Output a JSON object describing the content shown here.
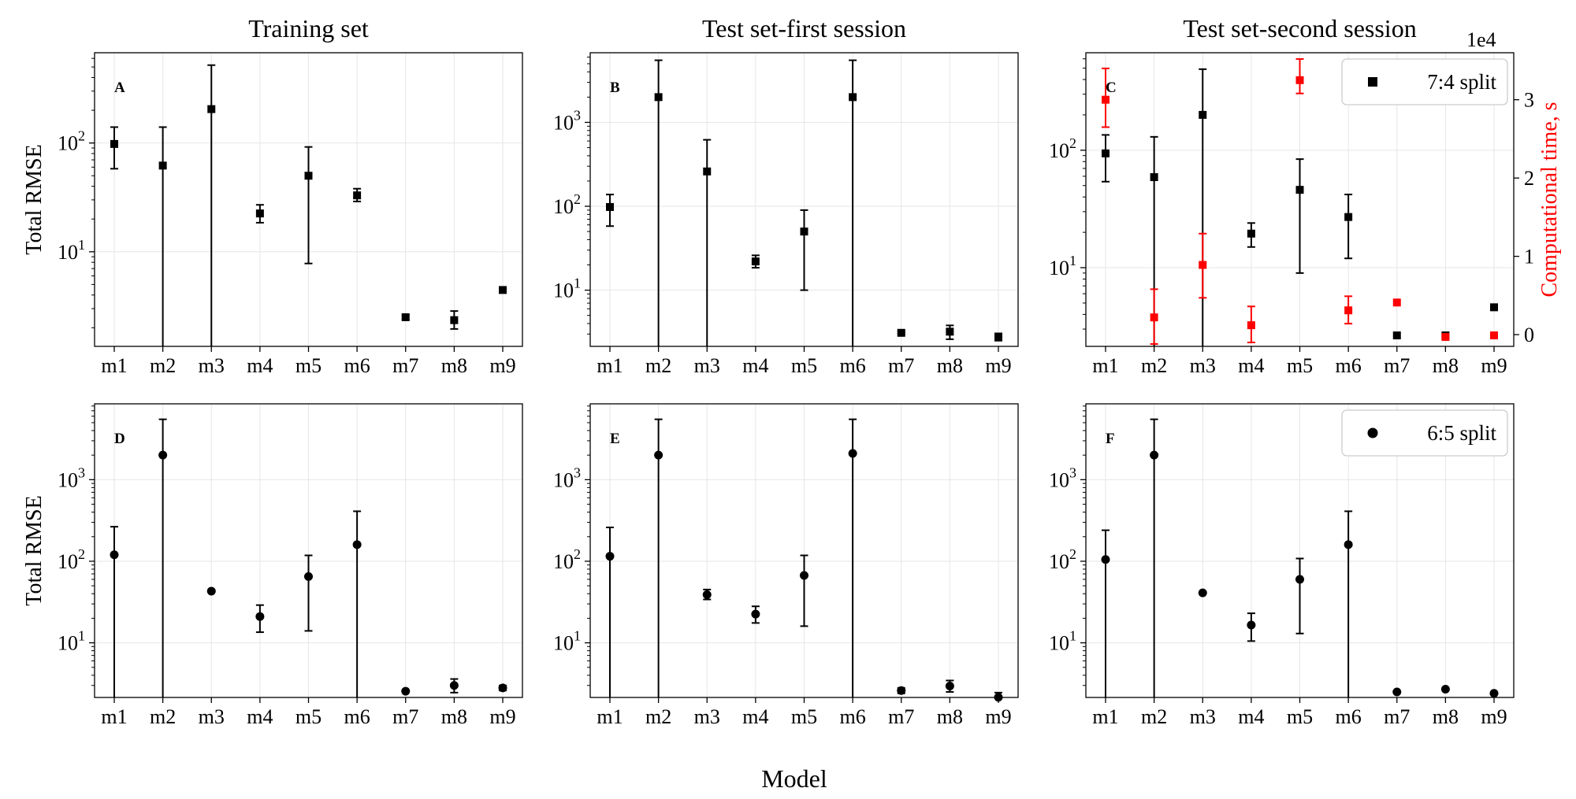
{
  "figure": {
    "xlabel": "Model",
    "ylabel": "Total RMSE",
    "secondary_ylabel": "Computational time, s",
    "secondary_exponent": "1e4",
    "colors": {
      "primary": "#000000",
      "time": "#ff0000",
      "grid": "#e6e6e6"
    }
  },
  "chart_data": [
    {
      "panel": "A",
      "type": "scatter",
      "title": "Training set",
      "ylabel": "Total RMSE",
      "yscale": "log",
      "categories": [
        "m1",
        "m2",
        "m3",
        "m4",
        "m5",
        "m6",
        "m7",
        "m8",
        "m9"
      ],
      "ytick_labels": [
        {
          "value": 10,
          "label": "10",
          "sup": "1"
        },
        {
          "value": 100,
          "label": "10",
          "sup": "2"
        }
      ],
      "grid": true,
      "series": [
        {
          "marker": "square",
          "color": "#000000",
          "values": [
            98,
            62,
            205,
            22.5,
            50,
            33,
            2.5,
            2.35,
            4.45
          ],
          "err_low": [
            58,
            1.2,
            1.2,
            18.5,
            7.8,
            29,
            2.4,
            1.95,
            4.2
          ],
          "err_high": [
            140,
            140,
            520,
            27,
            92,
            38,
            2.6,
            2.85,
            4.7
          ]
        }
      ]
    },
    {
      "panel": "B",
      "type": "scatter",
      "title": "Test set-first session",
      "ylabel": "",
      "yscale": "log",
      "categories": [
        "m1",
        "m2",
        "m3",
        "m4",
        "m5",
        "m6",
        "m7",
        "m8",
        "m9"
      ],
      "ytick_labels": [
        {
          "value": 10,
          "label": "10",
          "sup": "1"
        },
        {
          "value": 100,
          "label": "10",
          "sup": "2"
        },
        {
          "value": 1000,
          "label": "10",
          "sup": "3"
        }
      ],
      "grid": true,
      "series": [
        {
          "marker": "square",
          "color": "#000000",
          "values": [
            98,
            2000,
            260,
            22,
            50,
            2000,
            3.1,
            3.2,
            2.8
          ],
          "err_low": [
            58,
            1.2,
            1.2,
            18.5,
            10,
            1.2,
            3.0,
            2.6,
            2.5
          ],
          "err_high": [
            138,
            5500,
            620,
            26,
            90,
            5500,
            3.2,
            3.8,
            3.05
          ]
        }
      ]
    },
    {
      "panel": "C",
      "type": "scatter",
      "title": "Test set-second session",
      "ylabel": "",
      "yscale": "log",
      "categories": [
        "m1",
        "m2",
        "m3",
        "m4",
        "m5",
        "m6",
        "m7",
        "m8",
        "m9"
      ],
      "ytick_labels": [
        {
          "value": 10,
          "label": "10",
          "sup": "1"
        },
        {
          "value": 100,
          "label": "10",
          "sup": "2"
        }
      ],
      "grid": true,
      "legend": {
        "label": "7:4 split",
        "position": "top-right"
      },
      "series": [
        {
          "name": "7:4 split",
          "marker": "square",
          "color": "#000000",
          "axis": "left",
          "values": [
            94,
            59,
            200,
            19.5,
            46,
            27,
            2.65,
            2.65,
            4.6
          ],
          "err_low": [
            54,
            1.2,
            1.2,
            15,
            9,
            12,
            2.65,
            2.65,
            4.6
          ],
          "err_high": [
            135,
            130,
            490,
            24,
            84,
            42,
            2.65,
            2.65,
            4.6
          ]
        },
        {
          "marker": "square",
          "color": "#ff0000",
          "axis": "right",
          "values": [
            30000,
            2200,
            8900,
            1200,
            32500,
            3100,
            4100,
            -300,
            -100
          ],
          "err_low": [
            26500,
            -1200,
            4700,
            -1000,
            30800,
            1400,
            4100,
            -450,
            -100
          ],
          "err_high": [
            34000,
            5800,
            12900,
            3600,
            35200,
            4900,
            4100,
            -100,
            -100
          ]
        }
      ],
      "secondary_axis": {
        "label": "Computational time, s",
        "exponent": "1e4",
        "ticks": [
          0,
          10000,
          20000,
          30000
        ],
        "tick_labels": [
          "0",
          "1",
          "2",
          "3"
        ],
        "ylim": [
          -1500,
          36000
        ]
      }
    },
    {
      "panel": "D",
      "type": "scatter",
      "title": "",
      "ylabel": "Total RMSE",
      "yscale": "log",
      "categories": [
        "m1",
        "m2",
        "m3",
        "m4",
        "m5",
        "m6",
        "m7",
        "m8",
        "m9"
      ],
      "ytick_labels": [
        {
          "value": 10,
          "label": "10",
          "sup": "1"
        },
        {
          "value": 100,
          "label": "10",
          "sup": "2"
        },
        {
          "value": 1000,
          "label": "10",
          "sup": "3"
        }
      ],
      "grid": true,
      "series": [
        {
          "marker": "circle",
          "color": "#000000",
          "values": [
            120,
            2000,
            43,
            21,
            65,
            160,
            2.55,
            3.0,
            2.8
          ],
          "err_low": [
            1.2,
            1.2,
            43,
            13.5,
            14,
            1.2,
            2.55,
            2.45,
            2.6
          ],
          "err_high": [
            265,
            5500,
            43,
            29,
            118,
            410,
            2.55,
            3.6,
            3.0
          ]
        }
      ]
    },
    {
      "panel": "E",
      "type": "scatter",
      "title": "",
      "ylabel": "",
      "yscale": "log",
      "categories": [
        "m1",
        "m2",
        "m3",
        "m4",
        "m5",
        "m6",
        "m7",
        "m8",
        "m9"
      ],
      "ytick_labels": [
        {
          "value": 10,
          "label": "10",
          "sup": "1"
        },
        {
          "value": 100,
          "label": "10",
          "sup": "2"
        },
        {
          "value": 1000,
          "label": "10",
          "sup": "3"
        }
      ],
      "grid": true,
      "series": [
        {
          "marker": "circle",
          "color": "#000000",
          "values": [
            115,
            2000,
            39,
            22.5,
            67,
            2100,
            2.6,
            2.95,
            2.15
          ],
          "err_low": [
            1.2,
            1.2,
            34,
            17.5,
            16,
            1.2,
            2.4,
            2.5,
            1.9
          ],
          "err_high": [
            260,
            5500,
            45,
            28,
            118,
            5500,
            2.8,
            3.45,
            2.45
          ]
        }
      ]
    },
    {
      "panel": "F",
      "type": "scatter",
      "title": "",
      "ylabel": "",
      "yscale": "log",
      "categories": [
        "m1",
        "m2",
        "m3",
        "m4",
        "m5",
        "m6",
        "m7",
        "m8",
        "m9"
      ],
      "ytick_labels": [
        {
          "value": 10,
          "label": "10",
          "sup": "1"
        },
        {
          "value": 100,
          "label": "10",
          "sup": "2"
        },
        {
          "value": 1000,
          "label": "10",
          "sup": "3"
        }
      ],
      "grid": true,
      "legend": {
        "label": "6:5 split",
        "position": "top-right"
      },
      "series": [
        {
          "name": "6:5 split",
          "marker": "circle",
          "color": "#000000",
          "values": [
            105,
            2000,
            41,
            16.5,
            60,
            160,
            2.5,
            2.7,
            2.4
          ],
          "err_low": [
            1.2,
            1.2,
            41,
            10.5,
            13,
            1.2,
            2.5,
            2.7,
            2.4
          ],
          "err_high": [
            240,
            5500,
            41,
            23,
            108,
            410,
            2.5,
            2.7,
            2.4
          ]
        }
      ]
    }
  ]
}
